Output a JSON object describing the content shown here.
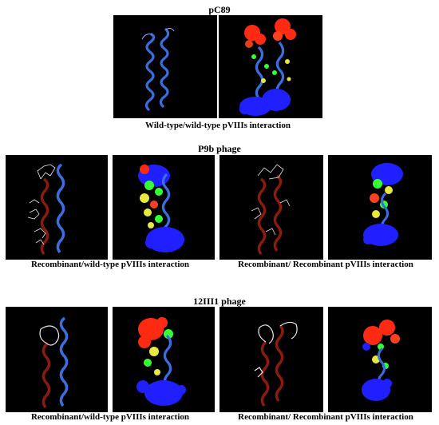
{
  "figure": {
    "sections": [
      {
        "title": "pC89",
        "captions": [
          "Wild-type/wild-type pVIIIs interaction"
        ]
      },
      {
        "title": "P9b phage",
        "captions": [
          "Recombinant/wild-type pVIIIs interaction",
          "Recombinant/ Recombinant pVIIIs interaction"
        ]
      },
      {
        "title": "12III1 phage",
        "captions": [
          "Recombinant/wild-type pVIIIs interaction",
          "Recombinant/ Recombinant pVIIIs interaction"
        ]
      }
    ],
    "panel_contents": [
      "ribbon-helices-blue-pair",
      "surface-interaction-map",
      "ribbon-recombinant-wildtype",
      "surface-interaction-map",
      "ribbon-recombinant-recombinant",
      "surface-interaction-map",
      "ribbon-recombinant-wildtype-loop",
      "surface-interaction-map",
      "ribbon-recombinant-recombinant-loop",
      "surface-interaction-map"
    ],
    "colors": {
      "panel_background": "#000000",
      "helix_blue": "#3b6fe0",
      "recombinant_red": "#8b1a0f",
      "surface_red": "#ff2a12",
      "surface_blue": "#1f1fff",
      "surface_green": "#33ff33",
      "surface_yellow": "#e8e840",
      "ligand_white": "#e8e8e8"
    }
  }
}
